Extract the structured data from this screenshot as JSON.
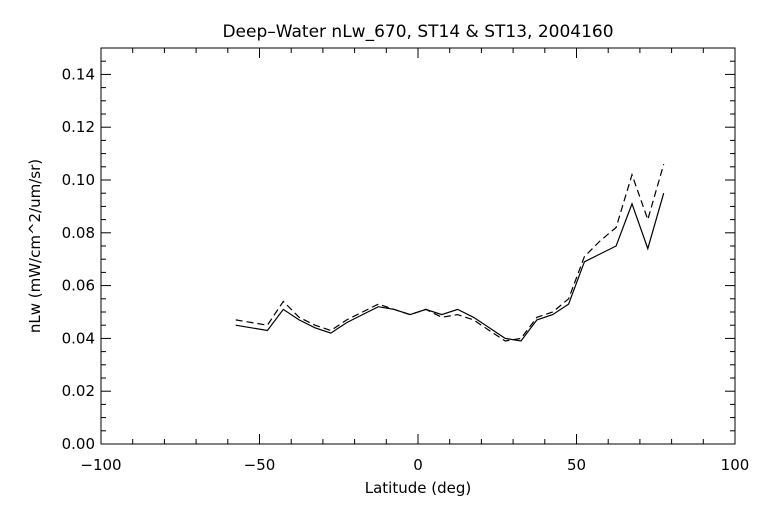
{
  "chart_data": {
    "type": "line",
    "title": "Deep–Water nLw_670, ST14 & ST13, 2004160",
    "xlabel": "Latitude (deg)",
    "ylabel": "nLw (mW/cm^2/um/sr)",
    "xlim": [
      -100,
      100
    ],
    "ylim": [
      0,
      0.15
    ],
    "x_ticks": [
      -100,
      -50,
      0,
      50,
      100
    ],
    "x_tick_labels": [
      "−100",
      "−50",
      "0",
      "50",
      "100"
    ],
    "y_ticks": [
      0,
      0.02,
      0.04,
      0.06,
      0.08,
      0.1,
      0.12,
      0.14
    ],
    "y_tick_labels": [
      "0.00",
      "0.02",
      "0.04",
      "0.06",
      "0.08",
      "0.10",
      "0.12",
      "0.14"
    ],
    "grid": false,
    "legend": "none",
    "series": [
      {
        "style": "solid",
        "x": [
          -57.5,
          -47.5,
          -42.5,
          -37.5,
          -32.5,
          -27.5,
          -22.5,
          -17.5,
          -12.5,
          -7.5,
          -2.5,
          2.5,
          7.5,
          12.5,
          17.5,
          22.5,
          27.5,
          32.5,
          37.5,
          42.5,
          47.5,
          52.5,
          57.5,
          62.5,
          67.5,
          72.5,
          77.5
        ],
        "y": [
          0.045,
          0.043,
          0.051,
          0.047,
          0.044,
          0.042,
          0.046,
          0.049,
          0.052,
          0.051,
          0.049,
          0.051,
          0.049,
          0.051,
          0.048,
          0.044,
          0.04,
          0.039,
          0.047,
          0.049,
          0.053,
          0.069,
          0.072,
          0.075,
          0.091,
          0.074,
          0.095
        ]
      },
      {
        "style": "dashed",
        "x": [
          -57.5,
          -47.5,
          -42.5,
          -37.5,
          -32.5,
          -27.5,
          -22.5,
          -17.5,
          -12.5,
          -7.5,
          -2.5,
          2.5,
          7.5,
          12.5,
          17.5,
          22.5,
          27.5,
          32.5,
          37.5,
          42.5,
          47.5,
          52.5,
          57.5,
          62.5,
          67.5,
          72.5,
          77.5
        ],
        "y": [
          0.047,
          0.045,
          0.054,
          0.048,
          0.045,
          0.043,
          0.047,
          0.05,
          0.053,
          0.051,
          0.049,
          0.051,
          0.048,
          0.049,
          0.047,
          0.043,
          0.039,
          0.04,
          0.048,
          0.05,
          0.055,
          0.071,
          0.077,
          0.082,
          0.102,
          0.085,
          0.106
        ]
      }
    ]
  }
}
